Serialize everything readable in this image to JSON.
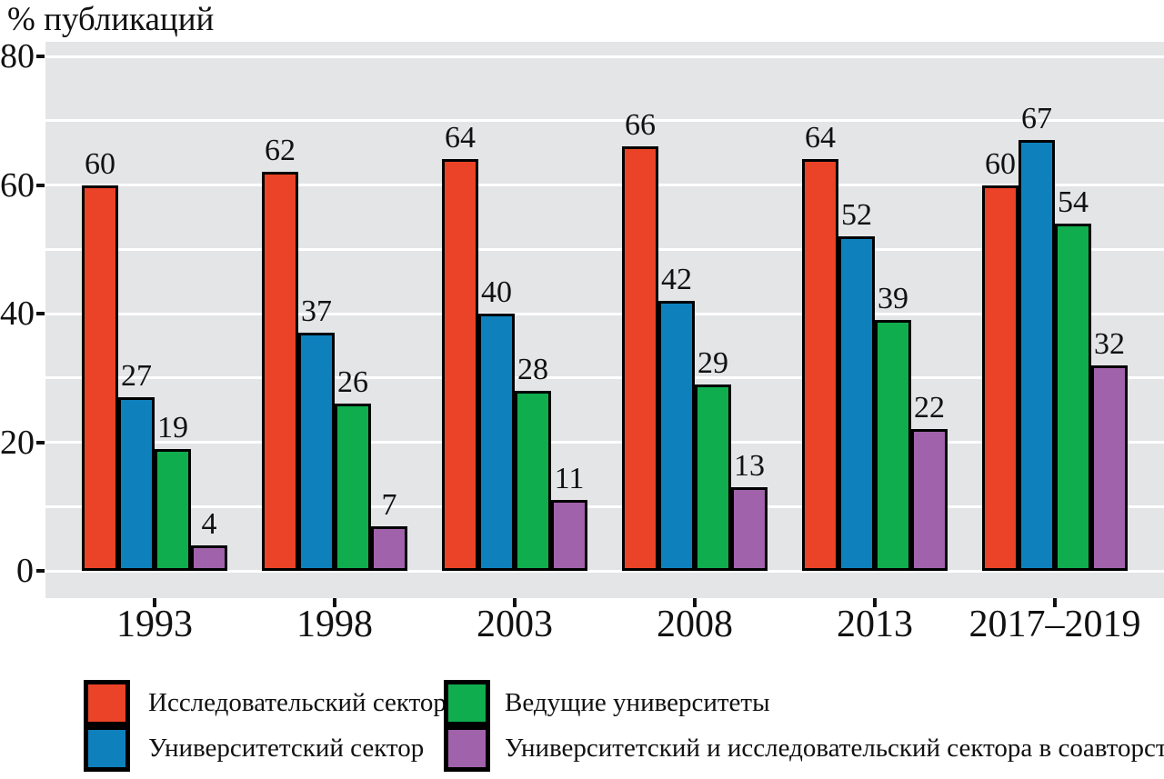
{
  "title": "% публикаций",
  "chart_data": {
    "type": "bar",
    "title": "% публикаций",
    "categories": [
      "1993",
      "1998",
      "2003",
      "2008",
      "2013",
      "2017–2019"
    ],
    "series": [
      {
        "name": "Исследовательский сектор",
        "color": "#EA4327",
        "values": [
          60,
          62,
          64,
          66,
          64,
          60
        ]
      },
      {
        "name": "Университетский сектор",
        "color": "#0E81BD",
        "values": [
          27,
          37,
          40,
          42,
          52,
          67
        ]
      },
      {
        "name": "Ведущие университеты",
        "color": "#0FAD4D",
        "values": [
          19,
          26,
          28,
          29,
          39,
          54
        ]
      },
      {
        "name": "Университетский и исследовательский сектора в соавторстве",
        "color": "#A062AA",
        "values": [
          4,
          7,
          11,
          13,
          22,
          32
        ]
      }
    ],
    "xlabel": "",
    "ylabel": "% публикаций",
    "ylim": [
      0,
      80
    ],
    "yticks": [
      0,
      20,
      40,
      60,
      80
    ],
    "gridline_step": 10,
    "grid": true,
    "legend_position": "bottom",
    "plot_bg": "#E4E5E7",
    "gridline_color": "#FFFFFF",
    "bar_outline": "#000000",
    "value_labels": true
  },
  "legend": {
    "column_series": [
      [
        0,
        1
      ],
      [
        2,
        3
      ]
    ]
  }
}
